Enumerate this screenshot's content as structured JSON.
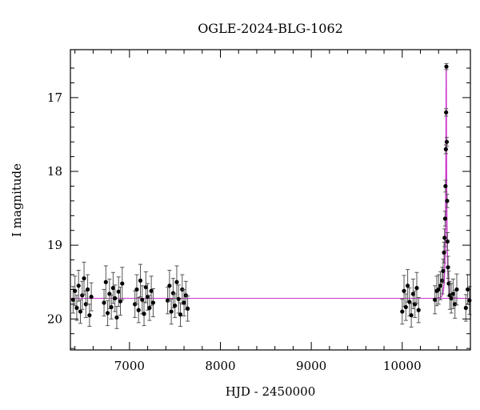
{
  "chart_data": {
    "type": "scatter",
    "title": "OGLE-2024-BLG-1062",
    "xlabel": "HJD - 2450000",
    "ylabel": "I magnitude",
    "xlim": [
      6350,
      10750
    ],
    "ylim": [
      20.42,
      16.35
    ],
    "y_inverted": true,
    "x_ticks": [
      7000,
      8000,
      9000,
      10000
    ],
    "y_ticks": [
      17,
      18,
      19,
      20
    ],
    "baseline_magnitude": 19.72,
    "model": {
      "type": "microlensing-fit",
      "color": "#cc33cc",
      "t0": 10484,
      "u0": 0.055,
      "tE": 19,
      "baseline": 19.72
    },
    "series": [
      {
        "color": "#000000",
        "points": [
          [
            6380,
            19.74,
            0.18
          ],
          [
            6400,
            19.62,
            0.2
          ],
          [
            6420,
            19.85,
            0.17
          ],
          [
            6440,
            19.55,
            0.21
          ],
          [
            6460,
            19.9,
            0.16
          ],
          [
            6480,
            19.68,
            0.19
          ],
          [
            6500,
            19.45,
            0.22
          ],
          [
            6520,
            19.8,
            0.18
          ],
          [
            6540,
            19.6,
            0.2
          ],
          [
            6560,
            19.95,
            0.15
          ],
          [
            6580,
            19.7,
            0.19
          ],
          [
            6720,
            19.78,
            0.18
          ],
          [
            6740,
            19.5,
            0.22
          ],
          [
            6760,
            19.92,
            0.17
          ],
          [
            6780,
            19.66,
            0.2
          ],
          [
            6800,
            19.84,
            0.16
          ],
          [
            6820,
            19.58,
            0.21
          ],
          [
            6840,
            19.72,
            0.18
          ],
          [
            6860,
            19.98,
            0.15
          ],
          [
            6880,
            19.63,
            0.2
          ],
          [
            6900,
            19.76,
            0.19
          ],
          [
            6920,
            19.52,
            0.22
          ],
          [
            7060,
            19.8,
            0.18
          ],
          [
            7080,
            19.6,
            0.2
          ],
          [
            7100,
            19.88,
            0.17
          ],
          [
            7120,
            19.48,
            0.22
          ],
          [
            7140,
            19.74,
            0.19
          ],
          [
            7160,
            19.93,
            0.16
          ],
          [
            7180,
            19.57,
            0.21
          ],
          [
            7200,
            19.7,
            0.18
          ],
          [
            7220,
            19.85,
            0.17
          ],
          [
            7240,
            19.62,
            0.2
          ],
          [
            7260,
            19.78,
            0.19
          ],
          [
            7420,
            19.75,
            0.18
          ],
          [
            7440,
            19.55,
            0.21
          ],
          [
            7460,
            19.9,
            0.17
          ],
          [
            7480,
            19.65,
            0.2
          ],
          [
            7500,
            19.82,
            0.16
          ],
          [
            7520,
            19.5,
            0.22
          ],
          [
            7540,
            19.73,
            0.19
          ],
          [
            7560,
            19.94,
            0.16
          ],
          [
            7580,
            19.6,
            0.2
          ],
          [
            7600,
            19.78,
            0.18
          ],
          [
            7620,
            19.68,
            0.19
          ],
          [
            7640,
            19.86,
            0.17
          ],
          [
            10000,
            19.9,
            0.17
          ],
          [
            10020,
            19.62,
            0.21
          ],
          [
            10040,
            19.84,
            0.18
          ],
          [
            10060,
            19.55,
            0.22
          ],
          [
            10080,
            19.77,
            0.19
          ],
          [
            10100,
            19.95,
            0.16
          ],
          [
            10120,
            19.66,
            0.2
          ],
          [
            10140,
            19.8,
            0.18
          ],
          [
            10160,
            19.58,
            0.21
          ],
          [
            10180,
            19.88,
            0.17
          ],
          [
            10360,
            19.74,
            0.19
          ],
          [
            10380,
            19.62,
            0.2
          ],
          [
            10400,
            19.6,
            0.2
          ],
          [
            10420,
            19.55,
            0.19
          ],
          [
            10440,
            19.48,
            0.18
          ],
          [
            10450,
            19.35,
            0.16
          ],
          [
            10460,
            19.1,
            0.14
          ],
          [
            10466,
            18.9,
            0.12
          ],
          [
            10472,
            18.64,
            0.1
          ],
          [
            10476,
            18.2,
            0.08
          ],
          [
            10480,
            17.7,
            0.06
          ],
          [
            10483,
            17.2,
            0.05
          ],
          [
            10486,
            16.58,
            0.04
          ],
          [
            10490,
            17.6,
            0.06
          ],
          [
            10494,
            18.4,
            0.09
          ],
          [
            10498,
            18.95,
            0.12
          ],
          [
            10504,
            19.3,
            0.15
          ],
          [
            10512,
            19.52,
            0.17
          ],
          [
            10524,
            19.68,
            0.19
          ],
          [
            10540,
            19.72,
            0.2
          ],
          [
            10560,
            19.66,
            0.2
          ],
          [
            10580,
            19.8,
            0.19
          ],
          [
            10600,
            19.6,
            0.21
          ],
          [
            10700,
            19.85,
            0.18
          ],
          [
            10720,
            19.6,
            0.2
          ],
          [
            10740,
            19.75,
            0.19
          ]
        ]
      }
    ]
  }
}
